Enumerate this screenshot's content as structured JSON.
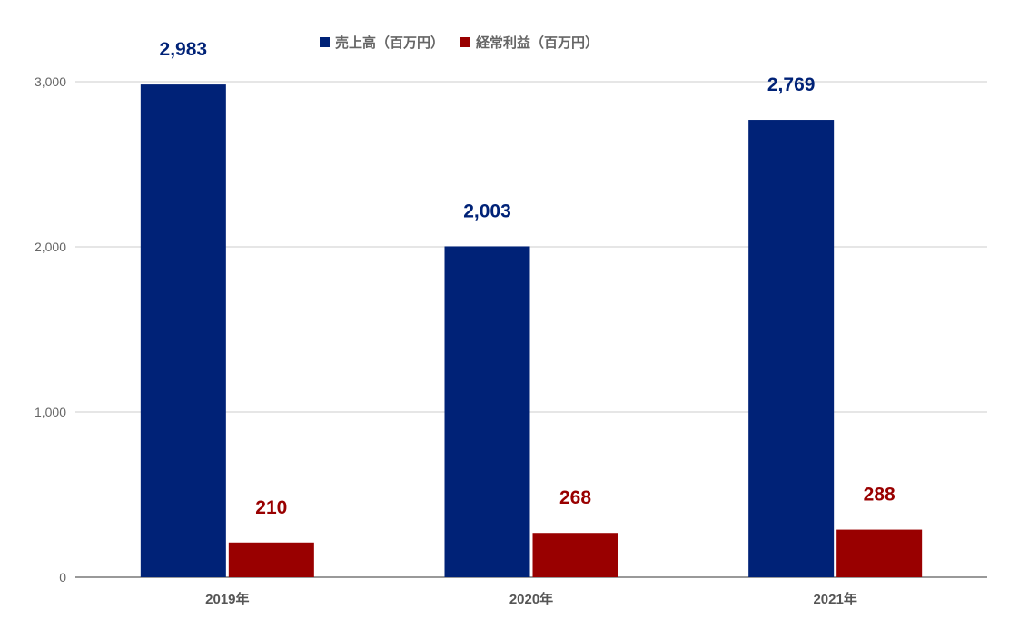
{
  "chart_data": {
    "type": "bar",
    "title": "",
    "xlabel": "",
    "ylabel": "",
    "categories": [
      "2019年",
      "2020年",
      "2021年"
    ],
    "series": [
      {
        "name": "売上高（百万円）",
        "values": [
          2983,
          2003,
          2769
        ],
        "labels": [
          "2,983",
          "2,003",
          "2,769"
        ],
        "color": "#002277"
      },
      {
        "name": "経常利益（百万円）",
        "values": [
          210,
          268,
          288
        ],
        "labels": [
          "210",
          "268",
          "288"
        ],
        "color": "#990000"
      }
    ],
    "ylim": [
      0,
      3000
    ],
    "yticks": [
      0,
      1000,
      2000,
      3000
    ],
    "ytick_labels": [
      "0",
      "1,000",
      "2,000",
      "3,000"
    ],
    "grid": true,
    "legend_position": "top-center",
    "colors": {
      "grid": "#cccccc",
      "axis": "#333333",
      "tick_text": "#666666",
      "category_text": "#555555"
    }
  }
}
